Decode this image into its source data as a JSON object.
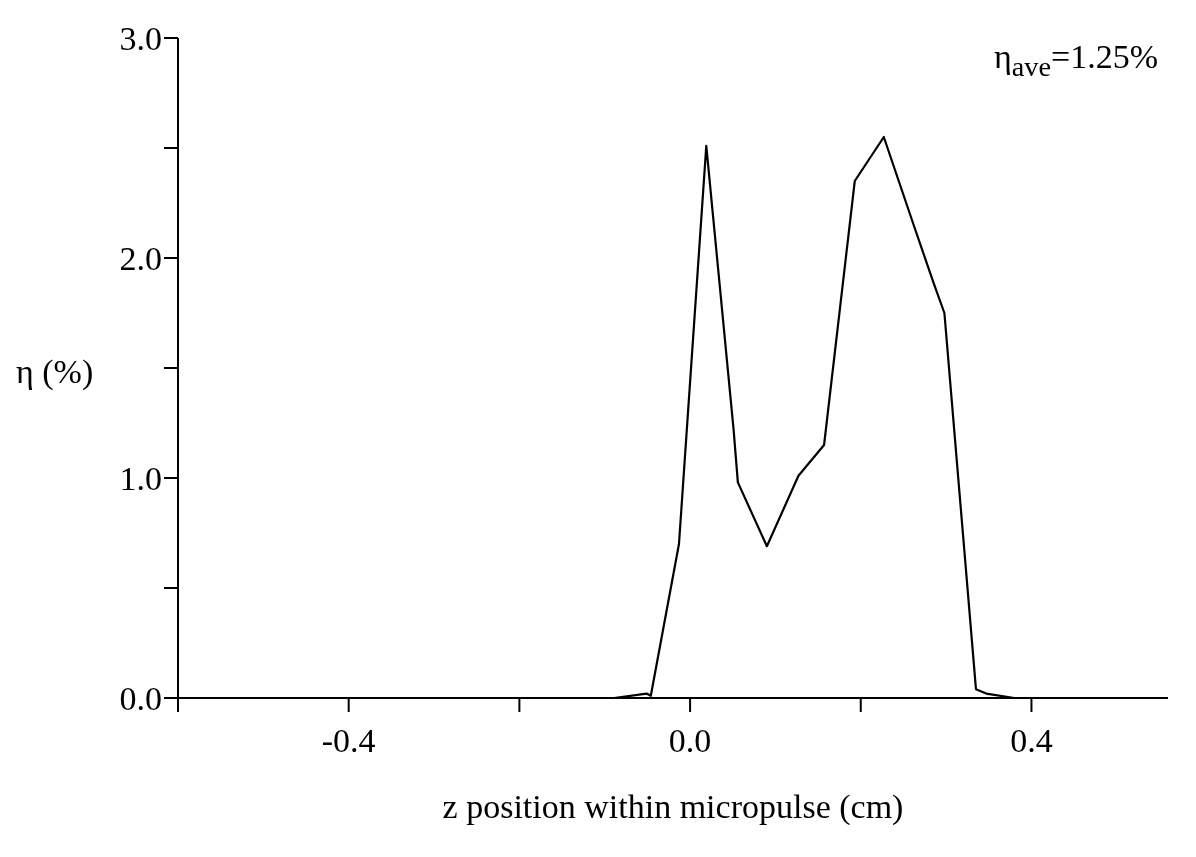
{
  "chart_data": {
    "type": "line",
    "xlabel": "z position within micropulse (cm)",
    "ylabel": "η (%)",
    "annotations": [
      "η$_{ave}$=1.25%"
    ],
    "x": [
      -0.6,
      -0.089,
      -0.051,
      -0.046,
      -0.013,
      0.019,
      0.051,
      0.056,
      0.09,
      0.127,
      0.157,
      0.193,
      0.227,
      0.262,
      0.285,
      0.298,
      0.335,
      0.347,
      0.38,
      0.56
    ],
    "series": [
      {
        "color": "#000000",
        "values": [
          0,
          0,
          0.02,
          0.01,
          0.7,
          2.51,
          1.22,
          0.98,
          0.69,
          1.01,
          1.15,
          2.35,
          2.55,
          2.15,
          1.89,
          1.75,
          0.04,
          0.02,
          0,
          0
        ]
      }
    ],
    "xlim": [
      -0.6,
      0.56
    ],
    "xticks": [
      {
        "value": -0.6,
        "label": null
      },
      -0.4,
      {
        "value": -0.2,
        "label": null
      },
      {
        "value": 0,
        "label": "0.0"
      },
      {
        "value": 0.2,
        "label": null
      },
      0.4
    ],
    "ylim": [
      0,
      3
    ],
    "yticks": [
      {
        "value": 0,
        "label": "0.0"
      },
      {
        "value": 0.5,
        "label": null
      },
      {
        "value": 1,
        "label": "1.0"
      },
      {
        "value": 1.5,
        "label": null
      },
      {
        "value": 2,
        "label": "2.0"
      },
      {
        "value": 2.5,
        "label": null
      },
      {
        "value": 3,
        "label": "3.0"
      }
    ],
    "grid": false,
    "legend": false,
    "marker": "none",
    "line_style": "solid"
  }
}
